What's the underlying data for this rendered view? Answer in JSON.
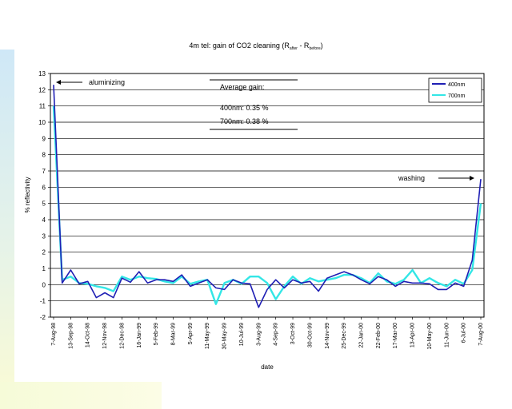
{
  "chart_data": {
    "type": "line",
    "title": "4m tel: gain of CO2 cleaning (R",
    "title_sub1": "after",
    "title_mid": " - R",
    "title_sub2": "before",
    "title_end": ")",
    "xlabel": "date",
    "ylabel": "% reflectivity",
    "ylim": [
      -2,
      13
    ],
    "yticks": [
      -2,
      -1,
      0,
      1,
      2,
      3,
      4,
      5,
      6,
      7,
      8,
      9,
      10,
      11,
      12,
      13
    ],
    "grid": true,
    "x_labels": [
      "7-Aug-98",
      "13-Sep-98",
      "14-Oct-98",
      "12-Nov-98",
      "12-Dec-98",
      "16-Jan-99",
      "5-Feb-99",
      "8-Mar-99",
      "5-Apr-99",
      "11-May-99",
      "30-May-99",
      "10-Jul-99",
      "3-Aug-99",
      "4-Sep-99",
      "3-Oct-99",
      "30-Oct-99",
      "14-Nov-99",
      "25-Dec-99",
      "22-Jan-00",
      "22-Feb-00",
      "17-Mar-00",
      "13-Apr-00",
      "10-May-00",
      "11-Jun-00",
      "6-Jul-00",
      "7-Aug-00"
    ],
    "series": [
      {
        "name": "400nm",
        "color": "#1f1fb4",
        "values": [
          12.3,
          0.1,
          0.9,
          0.05,
          0.2,
          -0.8,
          -0.5,
          -0.8,
          0.4,
          0.15,
          0.8,
          0.1,
          0.3,
          0.3,
          0.2,
          0.6,
          -0.1,
          0.1,
          0.3,
          -0.2,
          -0.3,
          0.3,
          0.1,
          0.05,
          -1.4,
          -0.3,
          0.3,
          -0.2,
          0.3,
          0.1,
          0.2,
          -0.4,
          0.4,
          0.6,
          0.8,
          0.6,
          0.3,
          0.05,
          0.5,
          0.3,
          -0.1,
          0.2,
          0.1,
          0.1,
          0.05,
          -0.3,
          -0.3,
          0.1,
          -0.1,
          1.5,
          6.5
        ]
      },
      {
        "name": "700nm",
        "color": "#33e6e6",
        "values": [
          11.0,
          0.3,
          0.5,
          0.1,
          0.05,
          -0.1,
          -0.2,
          -0.4,
          0.5,
          0.3,
          0.5,
          0.4,
          0.35,
          0.2,
          0.1,
          0.5,
          0.05,
          0.2,
          0.3,
          -1.2,
          0.1,
          0.3,
          0.05,
          0.5,
          0.5,
          0.1,
          -0.9,
          -0.1,
          0.5,
          0.05,
          0.4,
          0.2,
          0.3,
          0.4,
          0.6,
          0.6,
          0.4,
          0.1,
          0.7,
          0.2,
          0.05,
          0.3,
          0.9,
          0.1,
          0.4,
          0.1,
          -0.1,
          0.3,
          0.05,
          0.9,
          5.0
        ]
      }
    ],
    "annotations": {
      "aluminizing": "aluminizing",
      "washing": "washing",
      "average_title": "Average gain:",
      "average_400": "400nm: 0.35 %",
      "average_700": "700nm: 0.38 %"
    }
  }
}
